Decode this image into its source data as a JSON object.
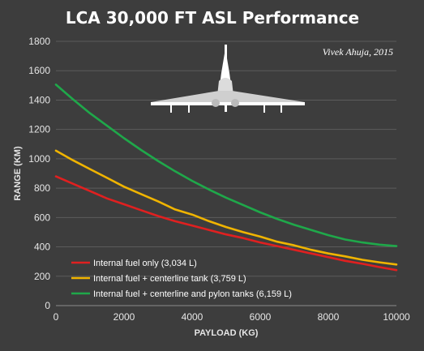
{
  "chart_data": {
    "type": "line",
    "title": "LCA 30,000 FT ASL Performance",
    "credit": "Vivek Ahuja, 2015",
    "xlabel": "PAYLOAD (KG)",
    "ylabel": "RANGE (KM)",
    "xlim": [
      0,
      10000
    ],
    "ylim": [
      0,
      1800
    ],
    "x_ticks": [
      "0",
      "2000",
      "4000",
      "6000",
      "8000",
      "10000"
    ],
    "y_ticks": [
      "0",
      "200",
      "400",
      "600",
      "800",
      "1000",
      "1200",
      "1400",
      "1600",
      "1800"
    ],
    "grid": true,
    "legend_position": "bottom-left",
    "series": [
      {
        "name": "Internal fuel only (3,034 L)",
        "color": "#e02020",
        "x": [
          0,
          500,
          1000,
          1500,
          2000,
          2500,
          3000,
          3500,
          4000,
          4500,
          5000,
          5500,
          6000,
          6500,
          7000,
          7500,
          8000,
          8500,
          9000,
          9500,
          10000
        ],
        "y": [
          880,
          830,
          780,
          730,
          690,
          650,
          610,
          575,
          545,
          515,
          485,
          460,
          430,
          405,
          380,
          355,
          330,
          305,
          285,
          262,
          242
        ]
      },
      {
        "name": "Internal fuel + centerline tank (3,759 L)",
        "color": "#f0b400",
        "x": [
          0,
          500,
          1000,
          1500,
          2000,
          2500,
          3000,
          3500,
          4000,
          4500,
          5000,
          5500,
          6000,
          6500,
          7000,
          7500,
          8000,
          8500,
          9000,
          9500,
          10000
        ],
        "y": [
          1055,
          990,
          930,
          870,
          810,
          760,
          710,
          655,
          620,
          575,
          535,
          500,
          470,
          435,
          410,
          380,
          355,
          335,
          312,
          295,
          280
        ]
      },
      {
        "name": "Internal fuel + centerline and pylon tanks (6,159 L)",
        "color": "#1fa84a",
        "x": [
          0,
          500,
          1000,
          1500,
          2000,
          2500,
          3000,
          3500,
          4000,
          4500,
          5000,
          5500,
          6000,
          6500,
          7000,
          7500,
          8000,
          8500,
          9000,
          9500,
          10000
        ],
        "y": [
          1505,
          1405,
          1310,
          1225,
          1140,
          1060,
          985,
          915,
          850,
          790,
          735,
          685,
          635,
          590,
          550,
          515,
          480,
          450,
          430,
          415,
          405
        ]
      }
    ]
  },
  "aircraft_icon": "fighter-jet-silhouette-icon"
}
